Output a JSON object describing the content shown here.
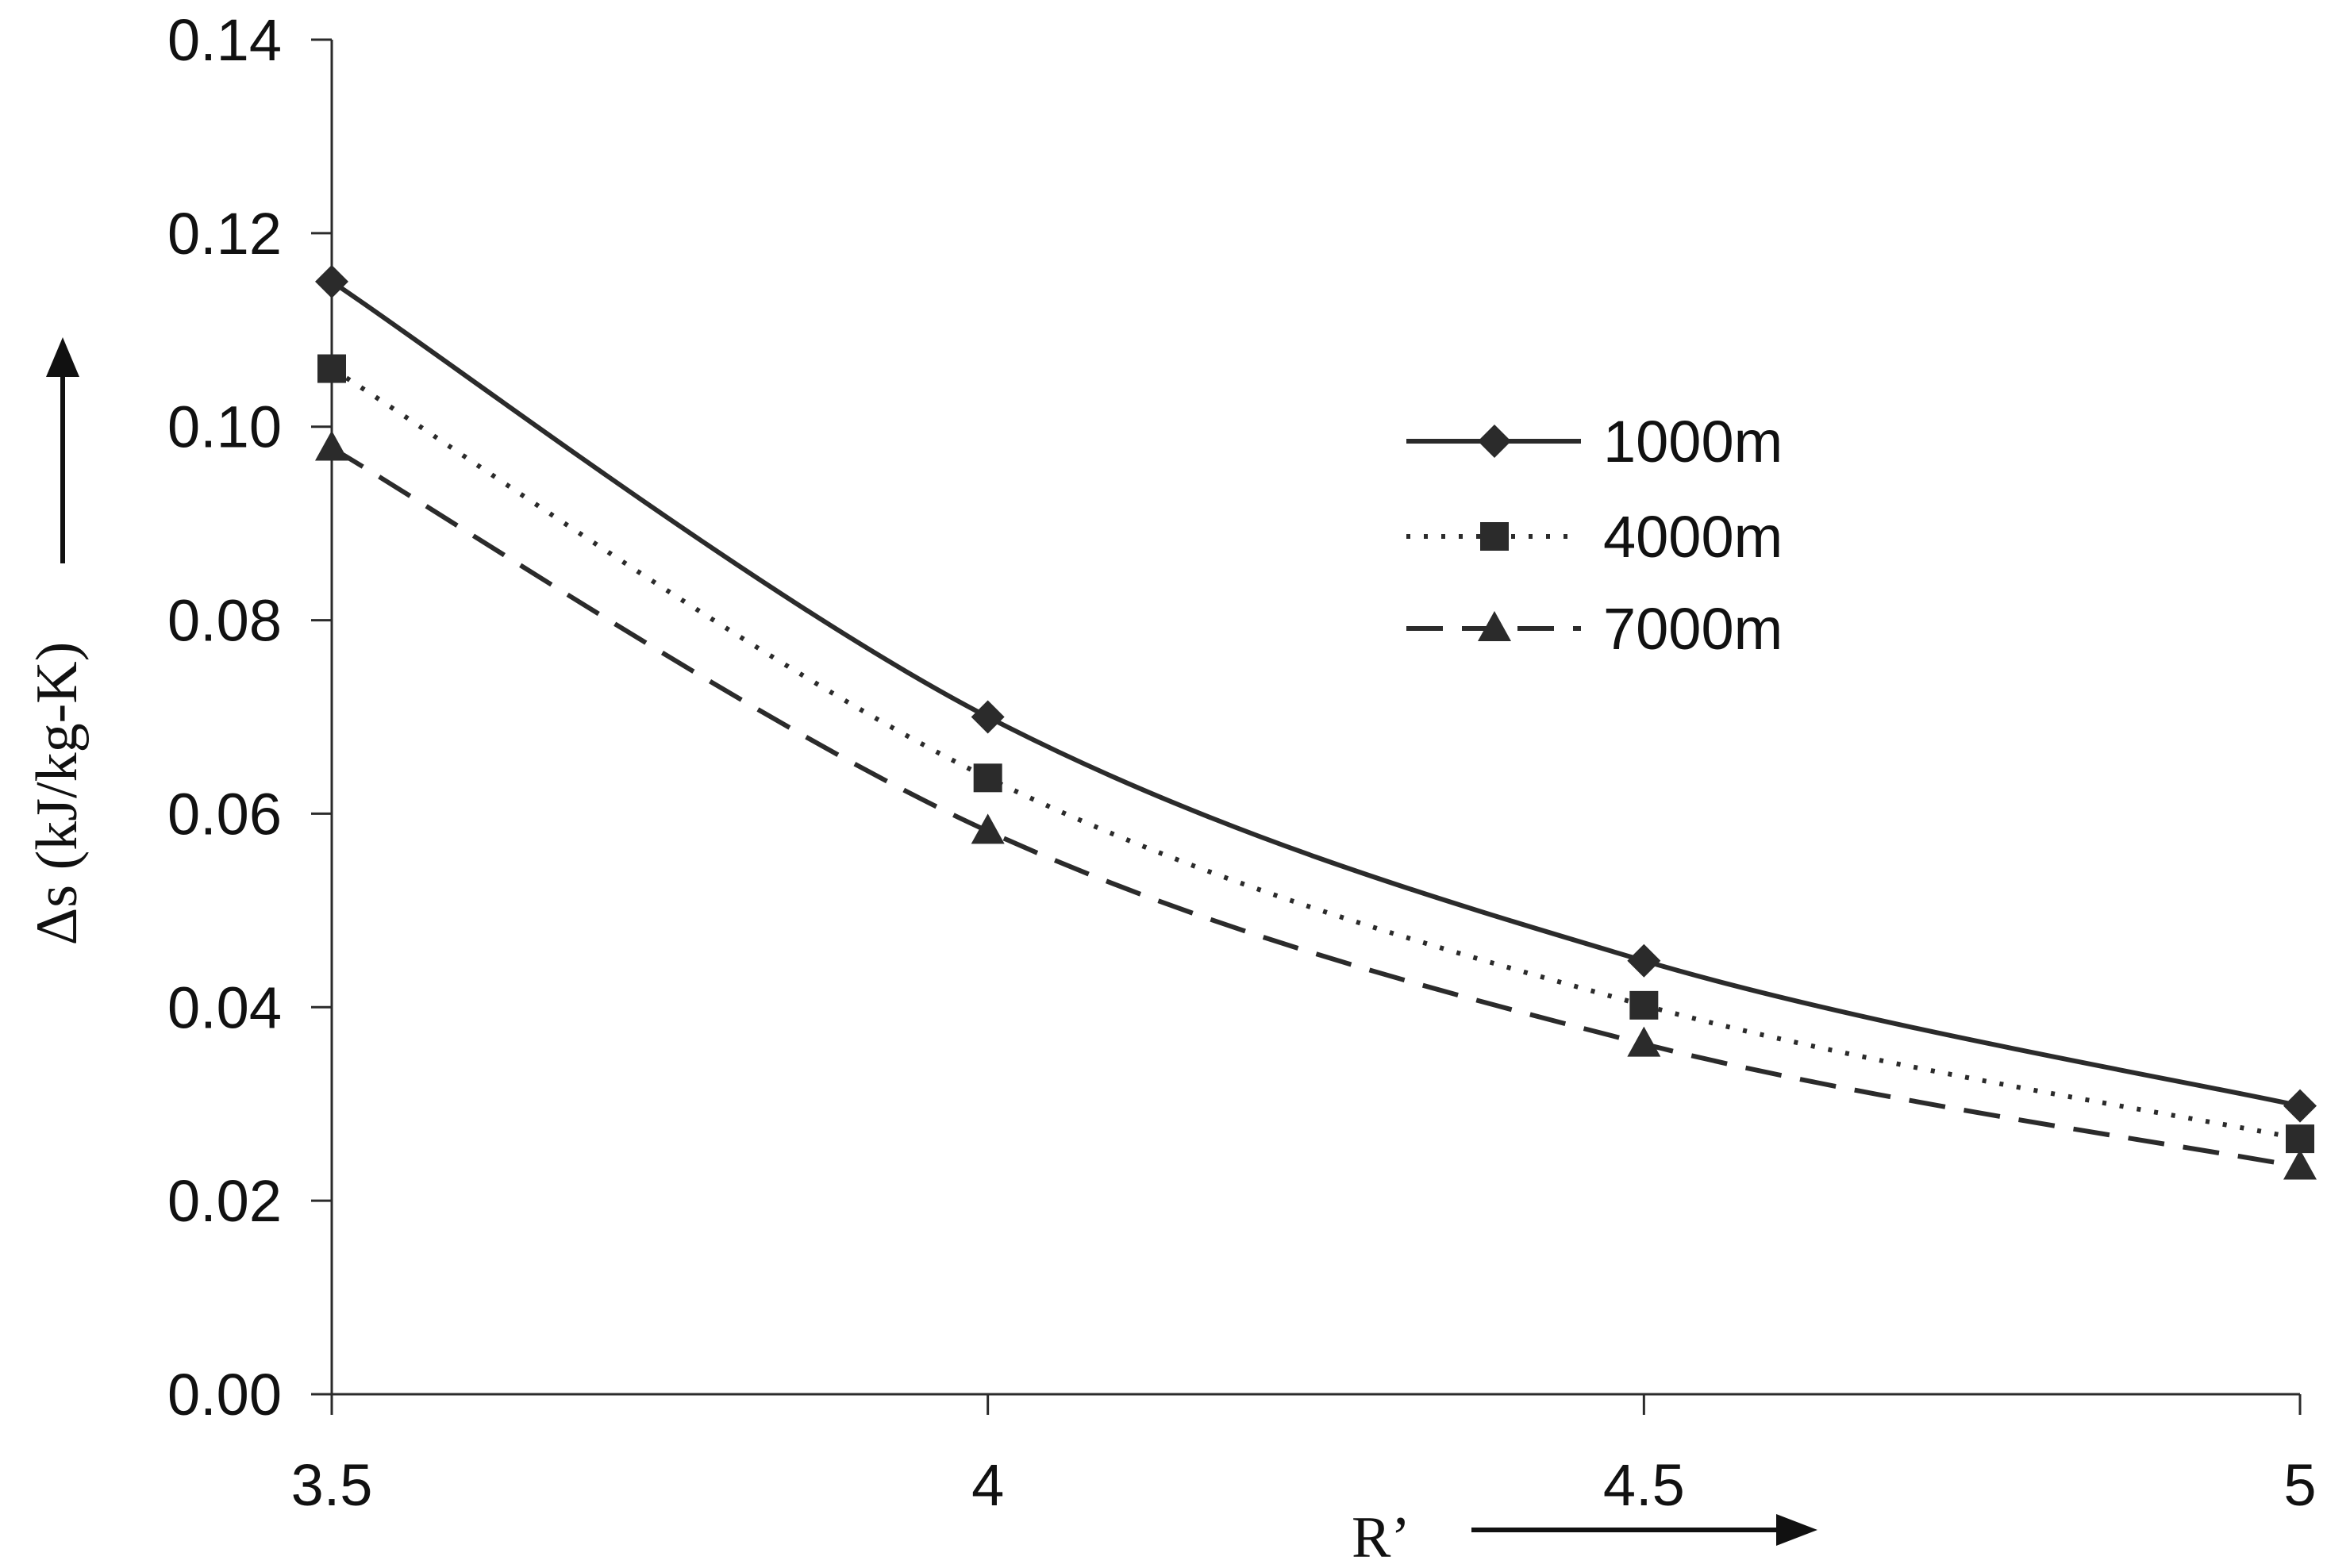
{
  "chart_data": {
    "type": "line",
    "xlabel": "R’",
    "ylabel": "Δs (kJ/kg-K)",
    "x": [
      3.5,
      4,
      4.5,
      5
    ],
    "x_tick_labels": [
      "3.5",
      "4",
      "4.5",
      "5"
    ],
    "y_tick_labels": [
      "0.00",
      "0.02",
      "0.04",
      "0.06",
      "0.08",
      "0.10",
      "0.12",
      "0.14"
    ],
    "xlim": [
      3.5,
      5
    ],
    "ylim": [
      0,
      0.14
    ],
    "grid": false,
    "legend_position": "right-center",
    "series": [
      {
        "name": "1000m",
        "values": [
          0.115,
          0.07,
          0.0448,
          0.0298
        ],
        "marker": "diamond",
        "dash": "solid",
        "color": "#2b2b2b"
      },
      {
        "name": "4000m",
        "values": [
          0.106,
          0.0637,
          0.0402,
          0.0264
        ],
        "marker": "square",
        "dash": "dotted",
        "color": "#2b2b2b"
      },
      {
        "name": "7000m",
        "values": [
          0.0978,
          0.0582,
          0.0362,
          0.0235
        ],
        "marker": "triangle",
        "dash": "dashed",
        "color": "#2b2b2b"
      }
    ]
  }
}
